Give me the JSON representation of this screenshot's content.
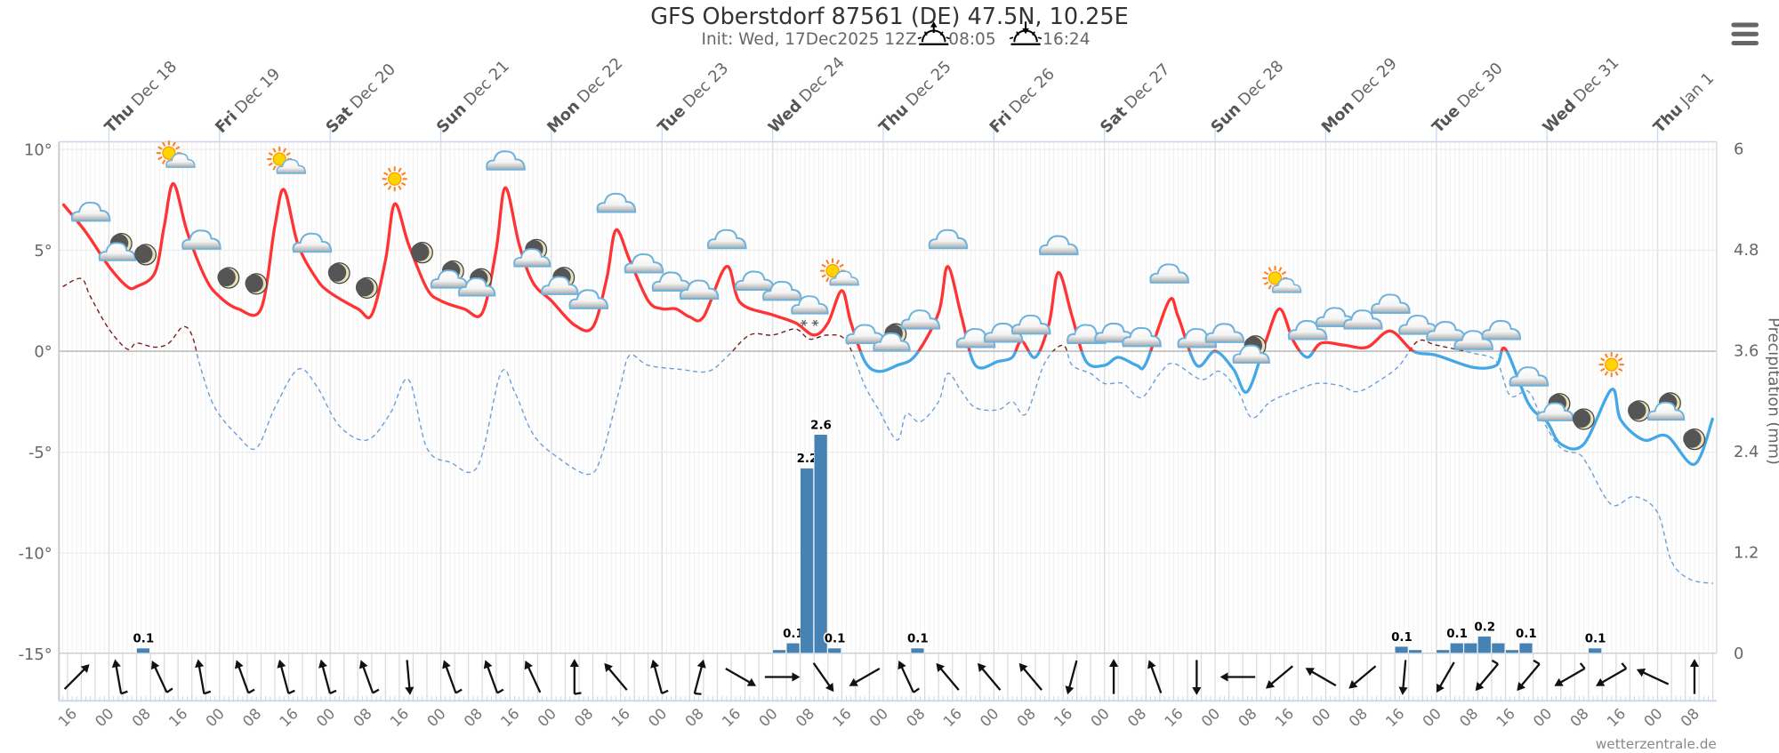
{
  "header": {
    "title": "GFS Oberstdorf 87561 (DE) 47.5N, 10.25E",
    "init": "Init: Wed, 17Dec2025 12Z",
    "sunrise": "08:05",
    "sunset": "16:24",
    "menu_icon": "hamburger-menu-icon"
  },
  "credit": "wetterzentrale.de",
  "colors": {
    "temp_above_zero": "#ff3333",
    "temp_below_zero": "#44a8e6",
    "dew_above_zero": "#7a1f1f",
    "dew_below_zero": "#6d9fd6",
    "precip_bar": "#4682b4"
  },
  "chart_data": {
    "type": "line",
    "title": "GFS Oberstdorf 87561 (DE) 47.5N, 10.25E",
    "y_left": {
      "ticks": [
        "10°",
        "5°",
        "0°",
        "-5°",
        "-10°",
        "-15°"
      ],
      "values": [
        10,
        5,
        0,
        -5,
        -10,
        -15
      ],
      "range": [
        -15,
        10
      ]
    },
    "y_right": {
      "label": "Precipitation (mm)",
      "ticks": [
        "6",
        "4.8",
        "3.6",
        "2.4",
        "1.2",
        "0"
      ],
      "values": [
        6,
        4.8,
        3.6,
        2.4,
        1.2,
        0
      ],
      "range": [
        0,
        6
      ]
    },
    "grid": true,
    "day_labels": [
      {
        "weekday": "Thu",
        "date": "Dec 18"
      },
      {
        "weekday": "Fri",
        "date": "Dec 19"
      },
      {
        "weekday": "Sat",
        "date": "Dec 20"
      },
      {
        "weekday": "Sun",
        "date": "Dec 21"
      },
      {
        "weekday": "Mon",
        "date": "Dec 22"
      },
      {
        "weekday": "Tue",
        "date": "Dec 23"
      },
      {
        "weekday": "Wed",
        "date": "Dec 24"
      },
      {
        "weekday": "Thu",
        "date": "Dec 25"
      },
      {
        "weekday": "Fri",
        "date": "Dec 26"
      },
      {
        "weekday": "Sat",
        "date": "Dec 27"
      },
      {
        "weekday": "Sun",
        "date": "Dec 28"
      },
      {
        "weekday": "Mon",
        "date": "Dec 29"
      },
      {
        "weekday": "Tue",
        "date": "Dec 30"
      },
      {
        "weekday": "Wed",
        "date": "Dec 31"
      },
      {
        "weekday": "Thu",
        "date": "Jan 1"
      }
    ],
    "hour_labels": [
      "16",
      "00",
      "08",
      "16",
      "00",
      "08",
      "16",
      "00",
      "08",
      "16",
      "00",
      "08",
      "16",
      "00",
      "08",
      "16",
      "00",
      "08",
      "16",
      "00",
      "08",
      "16",
      "00",
      "08",
      "16",
      "00",
      "08",
      "16",
      "00",
      "08",
      "16",
      "00",
      "08",
      "16",
      "00",
      "08",
      "16",
      "00",
      "08",
      "16",
      "00",
      "08",
      "16",
      "00",
      "08"
    ],
    "temperature": [
      [
        "12-17 14",
        7.3
      ],
      [
        "12-17 19",
        5.9
      ],
      [
        "12-18 00",
        4.2
      ],
      [
        "12-18 04",
        3.2
      ],
      [
        "12-18 06",
        3.2
      ],
      [
        "12-18 10",
        3.9
      ],
      [
        "12-18 12",
        6.2
      ],
      [
        "12-18 14",
        8.3
      ],
      [
        "12-18 17",
        5.9
      ],
      [
        "12-18 21",
        3.6
      ],
      [
        "12-19 00",
        2.7
      ],
      [
        "12-19 04",
        2.1
      ],
      [
        "12-19 09",
        2.1
      ],
      [
        "12-19 12",
        6.2
      ],
      [
        "12-19 14",
        8.0
      ],
      [
        "12-19 17",
        5.3
      ],
      [
        "12-19 21",
        3.6
      ],
      [
        "12-20 00",
        2.9
      ],
      [
        "12-20 06",
        2.1
      ],
      [
        "12-20 09",
        1.8
      ],
      [
        "12-20 12",
        4.5
      ],
      [
        "12-20 14",
        7.3
      ],
      [
        "12-20 17",
        5.3
      ],
      [
        "12-20 21",
        3.1
      ],
      [
        "12-21 00",
        2.5
      ],
      [
        "12-21 05",
        2.1
      ],
      [
        "12-21 09",
        1.9
      ],
      [
        "12-21 12",
        5.0
      ],
      [
        "12-21 14",
        8.1
      ],
      [
        "12-21 17",
        5.3
      ],
      [
        "12-21 20",
        3.4
      ],
      [
        "12-22 00",
        2.5
      ],
      [
        "12-22 05",
        1.3
      ],
      [
        "12-22 09",
        1.2
      ],
      [
        "12-22 12",
        3.6
      ],
      [
        "12-22 14",
        6.0
      ],
      [
        "12-22 17",
        4.5
      ],
      [
        "12-22 21",
        2.5
      ],
      [
        "12-23 00",
        2.1
      ],
      [
        "12-23 03",
        2.1
      ],
      [
        "12-23 06",
        1.7
      ],
      [
        "12-23 09",
        1.7
      ],
      [
        "12-23 14",
        4.2
      ],
      [
        "12-23 17",
        2.4
      ],
      [
        "12-24 00",
        1.8
      ],
      [
        "12-24 05",
        1.4
      ],
      [
        "12-24 09",
        0.8
      ],
      [
        "12-24 12",
        1.4
      ],
      [
        "12-24 15",
        3.0
      ],
      [
        "12-24 17",
        1.4
      ],
      [
        "12-24 20",
        -0.5
      ],
      [
        "12-24 23",
        -1.0
      ],
      [
        "12-25 03",
        -0.7
      ],
      [
        "12-25 07",
        -0.2
      ],
      [
        "12-25 12",
        1.9
      ],
      [
        "12-25 14",
        4.2
      ],
      [
        "12-25 17",
        1.7
      ],
      [
        "12-25 20",
        -0.7
      ],
      [
        "12-26 01",
        -0.5
      ],
      [
        "12-26 04",
        -0.3
      ],
      [
        "12-26 06",
        0.5
      ],
      [
        "12-26 09",
        -0.3
      ],
      [
        "12-26 12",
        1.4
      ],
      [
        "12-26 14",
        3.9
      ],
      [
        "12-26 17",
        1.7
      ],
      [
        "12-26 20",
        -0.5
      ],
      [
        "12-27 00",
        -0.7
      ],
      [
        "12-27 03",
        -0.3
      ],
      [
        "12-27 07",
        -0.7
      ],
      [
        "12-27 09",
        -0.6
      ],
      [
        "12-27 14",
        2.5
      ],
      [
        "12-27 16",
        1.7
      ],
      [
        "12-27 20",
        -0.7
      ],
      [
        "12-28 00",
        0.0
      ],
      [
        "12-28 04",
        -0.9
      ],
      [
        "12-28 07",
        -2.0
      ],
      [
        "12-28 11",
        0.5
      ],
      [
        "12-28 14",
        2.1
      ],
      [
        "12-28 17",
        0.5
      ],
      [
        "12-28 20",
        -0.3
      ],
      [
        "12-28 23",
        0.4
      ],
      [
        "12-29 04",
        0.3
      ],
      [
        "12-29 09",
        0.2
      ],
      [
        "12-29 14",
        1.0
      ],
      [
        "12-29 19",
        0.0
      ],
      [
        "12-30 00",
        -0.2
      ],
      [
        "12-30 08",
        -0.8
      ],
      [
        "12-30 13",
        -0.7
      ],
      [
        "12-30 15",
        0.1
      ],
      [
        "12-30 20",
        -2.6
      ],
      [
        "12-31 00",
        -3.5
      ],
      [
        "12-31 03",
        -4.6
      ],
      [
        "12-31 08",
        -4.6
      ],
      [
        "12-31 14",
        -1.9
      ],
      [
        "12-31 16",
        -3.4
      ],
      [
        "12-31 21",
        -4.4
      ],
      [
        "01-01 02",
        -4.2
      ],
      [
        "01-01 08",
        -5.6
      ],
      [
        "01-01 12",
        -3.3
      ]
    ],
    "dewpoint": [
      [
        "12-17 14",
        3.2
      ],
      [
        "12-17 18",
        3.6
      ],
      [
        "12-17 20",
        2.7
      ],
      [
        "12-18 00",
        1.1
      ],
      [
        "12-18 04",
        0.1
      ],
      [
        "12-18 06",
        0.4
      ],
      [
        "12-18 10",
        0.2
      ],
      [
        "12-18 13",
        0.4
      ],
      [
        "12-18 16",
        1.2
      ],
      [
        "12-18 18",
        0.8
      ],
      [
        "12-18 20",
        -0.9
      ],
      [
        "12-18 23",
        -2.8
      ],
      [
        "12-19 04",
        -4.2
      ],
      [
        "12-19 08",
        -4.8
      ],
      [
        "12-19 12",
        -2.8
      ],
      [
        "12-19 17",
        -0.9
      ],
      [
        "12-19 21",
        -1.7
      ],
      [
        "12-20 02",
        -3.7
      ],
      [
        "12-20 08",
        -4.4
      ],
      [
        "12-20 13",
        -3.1
      ],
      [
        "12-20 17",
        -1.4
      ],
      [
        "12-20 21",
        -4.8
      ],
      [
        "12-21 02",
        -5.5
      ],
      [
        "12-21 08",
        -5.7
      ],
      [
        "12-21 13",
        -1.1
      ],
      [
        "12-21 16",
        -2.0
      ],
      [
        "12-21 20",
        -4.1
      ],
      [
        "12-22 01",
        -5.2
      ],
      [
        "12-22 08",
        -6.1
      ],
      [
        "12-22 11",
        -5.1
      ],
      [
        "12-22 15",
        -1.7
      ],
      [
        "12-22 17",
        -0.2
      ],
      [
        "12-22 21",
        -0.7
      ],
      [
        "12-23 04",
        -0.9
      ],
      [
        "12-23 10",
        -1.0
      ],
      [
        "12-23 14",
        -0.3
      ],
      [
        "12-23 19",
        0.8
      ],
      [
        "12-24 00",
        0.8
      ],
      [
        "12-24 05",
        1.1
      ],
      [
        "12-24 08",
        0.6
      ],
      [
        "12-24 12",
        0.8
      ],
      [
        "12-24 16",
        0.5
      ],
      [
        "12-24 20",
        -1.7
      ],
      [
        "12-24 23",
        -2.9
      ],
      [
        "12-25 03",
        -4.4
      ],
      [
        "12-25 05",
        -3.1
      ],
      [
        "12-25 08",
        -3.5
      ],
      [
        "12-25 12",
        -2.5
      ],
      [
        "12-25 14",
        -1.1
      ],
      [
        "12-25 17",
        -2.0
      ],
      [
        "12-25 20",
        -2.8
      ],
      [
        "12-26 01",
        -2.9
      ],
      [
        "12-26 04",
        -2.5
      ],
      [
        "12-26 07",
        -3.1
      ],
      [
        "12-26 11",
        -0.6
      ],
      [
        "12-26 15",
        0.3
      ],
      [
        "12-26 17",
        -0.7
      ],
      [
        "12-26 21",
        -1.1
      ],
      [
        "12-27 00",
        -1.6
      ],
      [
        "12-27 04",
        -1.6
      ],
      [
        "12-27 08",
        -2.3
      ],
      [
        "12-27 12",
        -1.1
      ],
      [
        "12-27 15",
        -0.6
      ],
      [
        "12-27 21",
        -1.4
      ],
      [
        "12-28 01",
        -1.0
      ],
      [
        "12-28 05",
        -2.0
      ],
      [
        "12-28 08",
        -3.3
      ],
      [
        "12-28 12",
        -2.5
      ],
      [
        "12-28 17",
        -2.0
      ],
      [
        "12-28 22",
        -1.6
      ],
      [
        "12-29 03",
        -1.7
      ],
      [
        "12-29 07",
        -2.0
      ],
      [
        "12-29 12",
        -1.4
      ],
      [
        "12-29 16",
        -0.7
      ],
      [
        "12-29 20",
        0.5
      ],
      [
        "12-30 00",
        0.3
      ],
      [
        "12-30 08",
        -0.1
      ],
      [
        "12-30 13",
        -0.5
      ],
      [
        "12-30 16",
        -2.2
      ],
      [
        "12-30 20",
        -2.0
      ],
      [
        "12-30 23",
        -3.4
      ],
      [
        "12-31 03",
        -4.8
      ],
      [
        "12-31 07",
        -5.1
      ],
      [
        "12-31 09",
        -5.7
      ],
      [
        "12-31 14",
        -7.6
      ],
      [
        "12-31 19",
        -7.2
      ],
      [
        "01-01 00",
        -8.0
      ],
      [
        "01-01 03",
        -10.4
      ],
      [
        "01-01 07",
        -11.3
      ],
      [
        "01-01 12",
        -11.5
      ]
    ],
    "precipitation_3h": [
      {
        "from": "12-18 06",
        "value": 0.06,
        "label": "0.1"
      },
      {
        "from": "12-24 00",
        "value": 0.04,
        "label": ""
      },
      {
        "from": "12-24 03",
        "value": 0.12,
        "label": "0.1"
      },
      {
        "from": "12-24 06",
        "value": 2.2,
        "label": "2.2"
      },
      {
        "from": "12-24 09",
        "value": 2.6,
        "label": "2.6"
      },
      {
        "from": "12-24 12",
        "value": 0.06,
        "label": "0.1"
      },
      {
        "from": "12-25 06",
        "value": 0.06,
        "label": "0.1"
      },
      {
        "from": "12-29 15",
        "value": 0.08,
        "label": "0.1"
      },
      {
        "from": "12-29 18",
        "value": 0.04,
        "label": ""
      },
      {
        "from": "12-30 00",
        "value": 0.04,
        "label": ""
      },
      {
        "from": "12-30 03",
        "value": 0.12,
        "label": "0.1"
      },
      {
        "from": "12-30 06",
        "value": 0.12,
        "label": ""
      },
      {
        "from": "12-30 09",
        "value": 0.2,
        "label": "0.2"
      },
      {
        "from": "12-30 12",
        "value": 0.12,
        "label": ""
      },
      {
        "from": "12-30 15",
        "value": 0.04,
        "label": ""
      },
      {
        "from": "12-30 18",
        "value": 0.12,
        "label": "0.1"
      },
      {
        "from": "12-31 09",
        "value": 0.06,
        "label": "0.1"
      }
    ],
    "weather_icons": {
      "start": "12-17 20",
      "step_hours": 6,
      "types": [
        "cloud",
        "moon-cloud",
        "moon",
        "sun-cloud",
        "cloud",
        "moon",
        "moon",
        "sun-cloud",
        "cloud",
        "moon",
        "moon",
        "sun",
        "moon",
        "moon-cloud",
        "moon-cloud",
        "cloud",
        "moon-cloud",
        "moon-cloud",
        "cloud",
        "cloud",
        "cloud",
        "cloud",
        "cloud",
        "cloud",
        "cloud",
        "cloud",
        "cloud-snow",
        "sun-cloud",
        "cloud",
        "moon-cloud",
        "cloud",
        "cloud",
        "cloud",
        "cloud",
        "cloud",
        "cloud",
        "cloud",
        "cloud",
        "cloud",
        "cloud",
        "cloud",
        "cloud",
        "moon-cloud",
        "sun-cloud",
        "cloud",
        "cloud",
        "cloud",
        "cloud",
        "cloud",
        "cloud",
        "cloud",
        "cloud",
        "cloud",
        "moon-cloud",
        "moon",
        "sun",
        "moon",
        "moon-cloud",
        "moon"
      ]
    },
    "wind_arrows": {
      "start": "12-17 17",
      "step_hours": 9,
      "direction_deg": [
        45,
        350,
        335,
        350,
        340,
        345,
        345,
        340,
        175,
        340,
        340,
        335,
        0,
        320,
        345,
        15,
        120,
        90,
        145,
        240,
        335,
        320,
        320,
        320,
        195,
        0,
        340,
        180,
        270,
        230,
        300,
        230,
        185,
        210,
        220,
        220,
        240,
        240,
        295,
        0
      ],
      "barb": [
        0,
        1,
        1,
        1,
        1,
        1,
        1,
        1,
        0,
        1,
        1,
        0,
        1,
        0,
        1,
        1,
        0,
        0,
        0,
        0,
        1,
        0,
        0,
        0,
        0,
        0,
        0,
        0,
        0,
        0,
        0,
        0,
        0,
        0,
        1,
        1,
        1,
        1,
        0,
        0
      ]
    }
  }
}
